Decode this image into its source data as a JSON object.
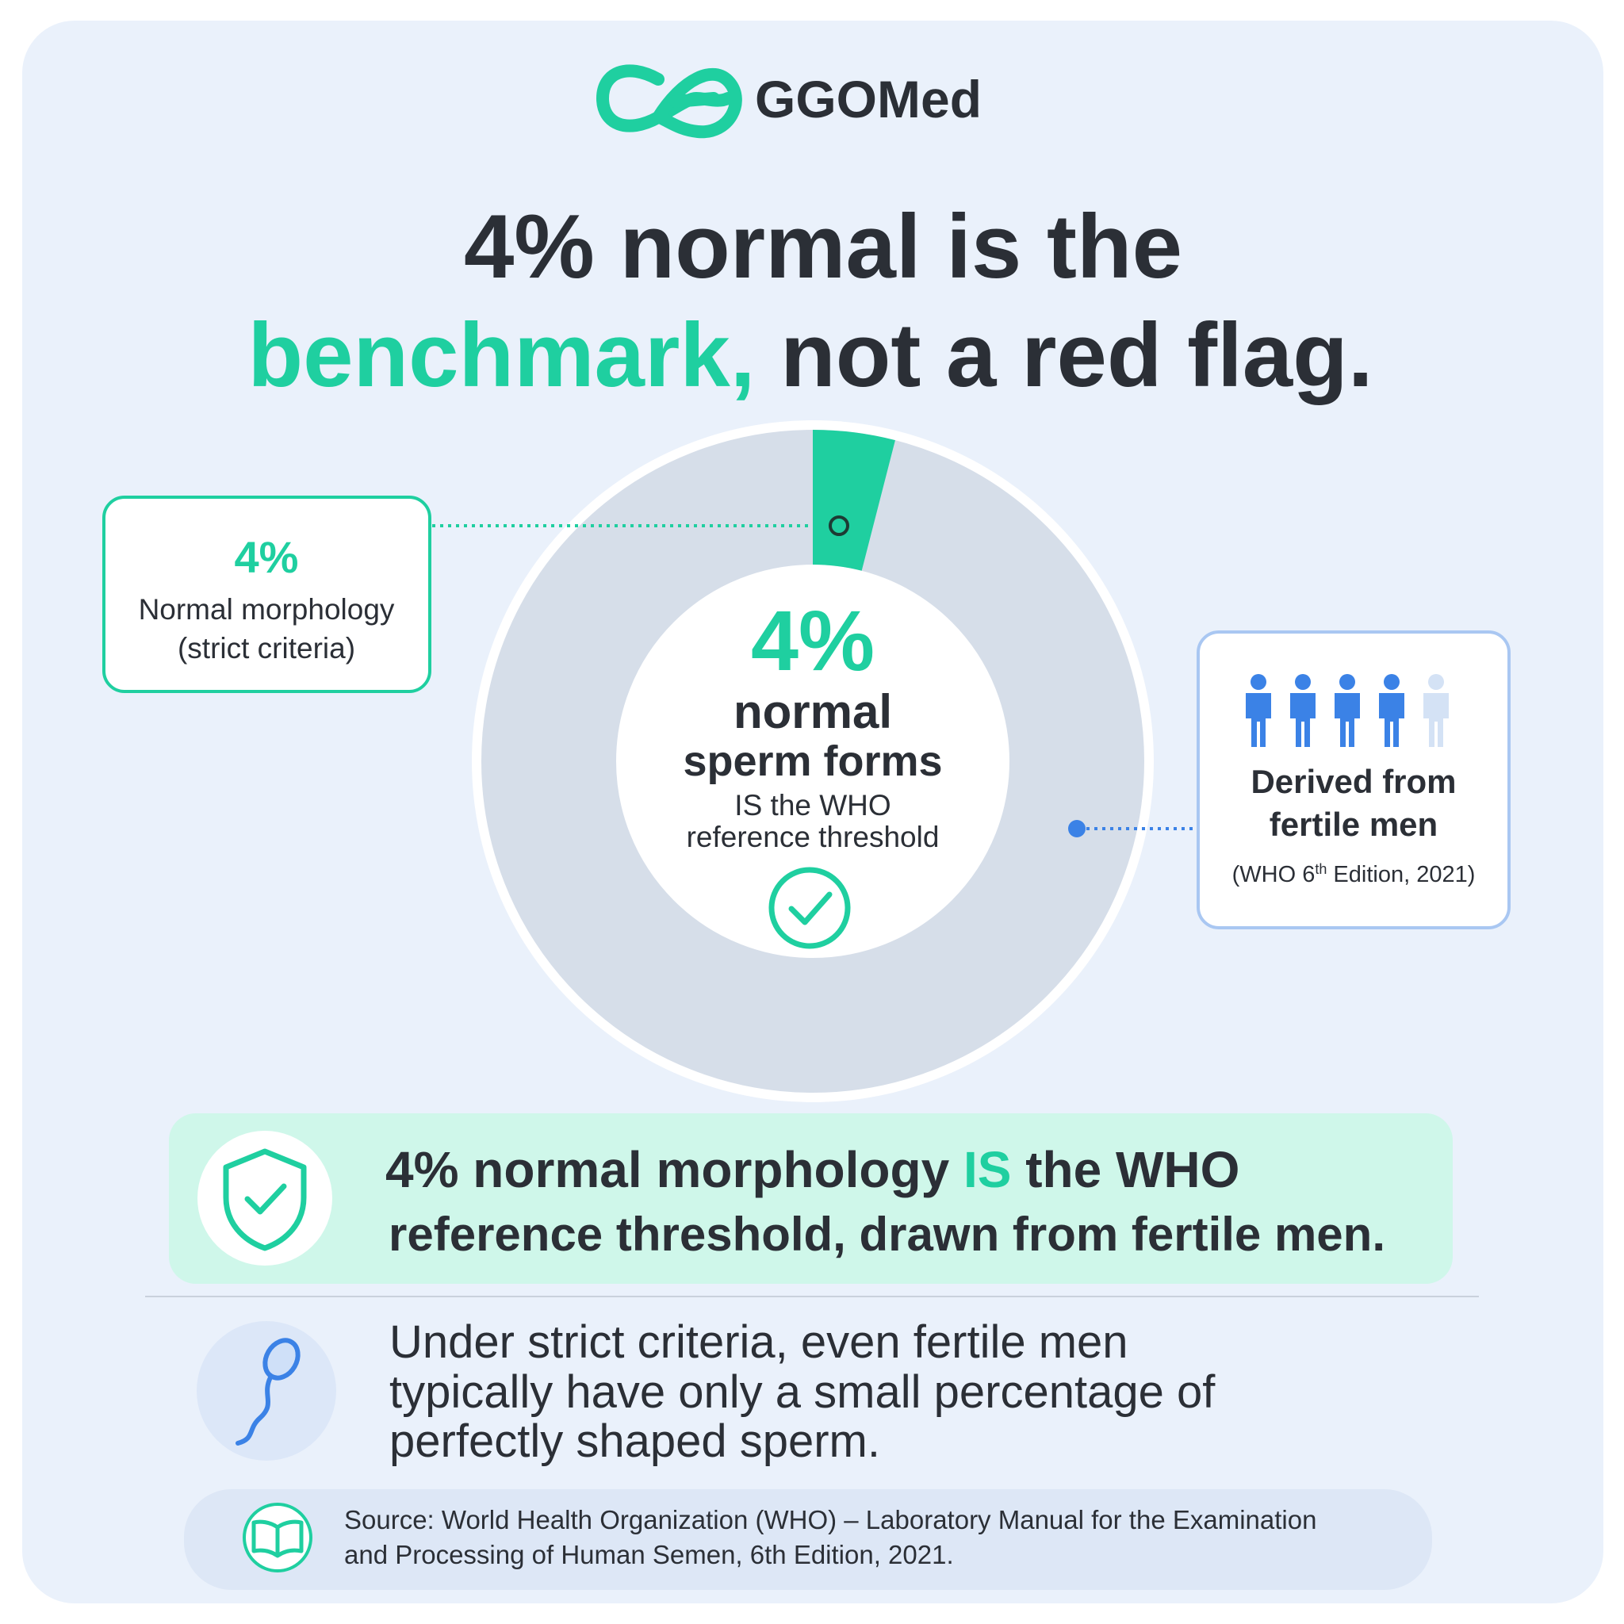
{
  "logo": {
    "name": "GGOMed"
  },
  "headline": {
    "line1": "4% normal is the",
    "highlight": "benchmark,",
    "rest": "not a red flag."
  },
  "donut": {
    "value": 4,
    "label": "4%",
    "line1": "normal",
    "line2": "sperm forms",
    "line3": "IS the WHO",
    "line4": "reference threshold"
  },
  "callout_left": {
    "value": "4%",
    "line1": "Normal morphology",
    "line2": "(strict criteria)"
  },
  "callout_right": {
    "line1": "Derived from",
    "line2": "fertile men",
    "note_before": "(WHO 6",
    "note_sup": "th",
    "note_after": " Edition, 2021)"
  },
  "key_message": {
    "before": "4% normal morphology ",
    "highlight": "IS",
    "after": " the WHO",
    "line2": "reference threshold, drawn from fertile men."
  },
  "explanation": {
    "lines": [
      "Under strict criteria, even fertile men",
      "typically have only a small percentage of",
      "perfectly shaped sperm."
    ]
  },
  "source": {
    "lines": [
      "Source: World Health Organization (WHO) – Laboratory Manual for the Examination",
      "and Processing of Human Semen, 6th Edition, 2021."
    ]
  }
}
